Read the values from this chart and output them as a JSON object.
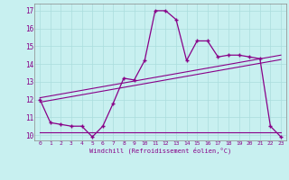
{
  "xlabel": "Windchill (Refroidissement éolien,°C)",
  "background_color": "#c8f0f0",
  "line_color": "#880088",
  "xlim": [
    -0.5,
    23.5
  ],
  "ylim": [
    9.7,
    17.4
  ],
  "xticks": [
    0,
    1,
    2,
    3,
    4,
    5,
    6,
    7,
    8,
    9,
    10,
    11,
    12,
    13,
    14,
    15,
    16,
    17,
    18,
    19,
    20,
    21,
    22,
    23
  ],
  "yticks": [
    10,
    11,
    12,
    13,
    14,
    15,
    16,
    17
  ],
  "main_line_x": [
    0,
    1,
    2,
    3,
    4,
    5,
    6,
    7,
    8,
    9,
    10,
    11,
    12,
    13,
    14,
    15,
    16,
    17,
    18,
    19,
    20,
    21,
    22,
    23
  ],
  "main_line_y": [
    12.0,
    10.7,
    10.6,
    10.5,
    10.5,
    9.9,
    10.5,
    11.8,
    13.2,
    13.1,
    14.2,
    17.0,
    17.0,
    16.5,
    14.2,
    15.3,
    15.3,
    14.4,
    14.5,
    14.5,
    14.4,
    14.3,
    10.5,
    9.9
  ],
  "reg_line1_x": [
    0,
    23
  ],
  "reg_line1_y": [
    11.85,
    14.25
  ],
  "reg_line2_x": [
    0,
    23
  ],
  "reg_line2_y": [
    12.1,
    14.5
  ],
  "flat_line_x": [
    0,
    23
  ],
  "flat_line_y": [
    10.15,
    10.15
  ],
  "grid_color": "#aadddd",
  "spine_color": "#888888"
}
